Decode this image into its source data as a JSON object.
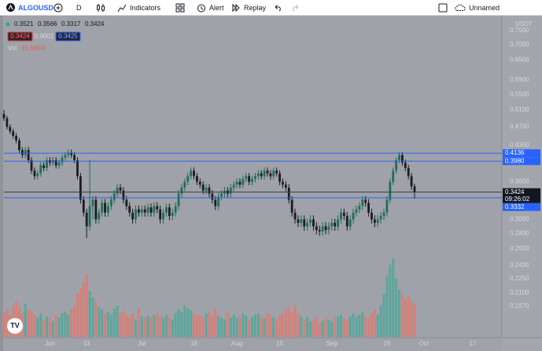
{
  "toolbar": {
    "symbol": "ALGOUSD",
    "interval": "D",
    "indicators": "Indicators",
    "alert": "Alert",
    "replay": "Replay",
    "layout_name": "Unnamed"
  },
  "chart_data": {
    "type": "candlestick",
    "currency": "USDT",
    "up_color": "#1f6e5a",
    "down_color": "#1c1c1e",
    "candles": [
      [
        0.5,
        0.51,
        0.484,
        0.49
      ],
      [
        0.49,
        0.496,
        0.464,
        0.47
      ],
      [
        0.47,
        0.476,
        0.454,
        0.46
      ],
      [
        0.46,
        0.466,
        0.444,
        0.45
      ],
      [
        0.45,
        0.456,
        0.434,
        0.44
      ],
      [
        0.44,
        0.446,
        0.414,
        0.42
      ],
      [
        0.42,
        0.426,
        0.404,
        0.41
      ],
      [
        0.41,
        0.426,
        0.404,
        0.42
      ],
      [
        0.42,
        0.426,
        0.394,
        0.4
      ],
      [
        0.4,
        0.406,
        0.374,
        0.38
      ],
      [
        0.38,
        0.386,
        0.364,
        0.37
      ],
      [
        0.37,
        0.381,
        0.364,
        0.375
      ],
      [
        0.375,
        0.396,
        0.369,
        0.39
      ],
      [
        0.39,
        0.396,
        0.379,
        0.385
      ],
      [
        0.385,
        0.406,
        0.379,
        0.4
      ],
      [
        0.4,
        0.406,
        0.389,
        0.395
      ],
      [
        0.395,
        0.406,
        0.389,
        0.4
      ],
      [
        0.4,
        0.406,
        0.384,
        0.39
      ],
      [
        0.39,
        0.401,
        0.384,
        0.395
      ],
      [
        0.395,
        0.411,
        0.389,
        0.405
      ],
      [
        0.405,
        0.416,
        0.399,
        0.41
      ],
      [
        0.41,
        0.421,
        0.404,
        0.415
      ],
      [
        0.415,
        0.421,
        0.404,
        0.41
      ],
      [
        0.41,
        0.416,
        0.394,
        0.4
      ],
      [
        0.4,
        0.406,
        0.364,
        0.37
      ],
      [
        0.37,
        0.376,
        0.324,
        0.33
      ],
      [
        0.33,
        0.336,
        0.304,
        0.31
      ],
      [
        0.31,
        0.316,
        0.274,
        0.29
      ],
      [
        0.29,
        0.4,
        0.284,
        0.32
      ],
      [
        0.32,
        0.336,
        0.3,
        0.33
      ],
      [
        0.33,
        0.336,
        0.294,
        0.3
      ],
      [
        0.3,
        0.316,
        0.294,
        0.31
      ],
      [
        0.31,
        0.331,
        0.304,
        0.325
      ],
      [
        0.325,
        0.331,
        0.304,
        0.31
      ],
      [
        0.31,
        0.326,
        0.304,
        0.32
      ],
      [
        0.32,
        0.336,
        0.314,
        0.33
      ],
      [
        0.33,
        0.346,
        0.324,
        0.34
      ],
      [
        0.34,
        0.356,
        0.334,
        0.35
      ],
      [
        0.35,
        0.356,
        0.339,
        0.345
      ],
      [
        0.345,
        0.351,
        0.324,
        0.33
      ],
      [
        0.33,
        0.336,
        0.314,
        0.32
      ],
      [
        0.32,
        0.326,
        0.304,
        0.31
      ],
      [
        0.31,
        0.316,
        0.294,
        0.3
      ],
      [
        0.3,
        0.321,
        0.294,
        0.315
      ],
      [
        0.315,
        0.321,
        0.304,
        0.31
      ],
      [
        0.31,
        0.321,
        0.304,
        0.315
      ],
      [
        0.315,
        0.321,
        0.304,
        0.31
      ],
      [
        0.31,
        0.324,
        0.304,
        0.318
      ],
      [
        0.318,
        0.324,
        0.304,
        0.31
      ],
      [
        0.31,
        0.326,
        0.304,
        0.32
      ],
      [
        0.32,
        0.326,
        0.309,
        0.315
      ],
      [
        0.315,
        0.321,
        0.294,
        0.3
      ],
      [
        0.3,
        0.316,
        0.294,
        0.31
      ],
      [
        0.31,
        0.324,
        0.304,
        0.318
      ],
      [
        0.318,
        0.324,
        0.299,
        0.305
      ],
      [
        0.305,
        0.316,
        0.299,
        0.31
      ],
      [
        0.31,
        0.326,
        0.304,
        0.32
      ],
      [
        0.32,
        0.346,
        0.314,
        0.34
      ],
      [
        0.34,
        0.356,
        0.334,
        0.35
      ],
      [
        0.35,
        0.366,
        0.344,
        0.36
      ],
      [
        0.36,
        0.376,
        0.354,
        0.37
      ],
      [
        0.37,
        0.386,
        0.364,
        0.38
      ],
      [
        0.38,
        0.386,
        0.364,
        0.37
      ],
      [
        0.37,
        0.376,
        0.354,
        0.36
      ],
      [
        0.36,
        0.366,
        0.349,
        0.355
      ],
      [
        0.355,
        0.361,
        0.339,
        0.345
      ],
      [
        0.345,
        0.356,
        0.339,
        0.35
      ],
      [
        0.35,
        0.356,
        0.334,
        0.34
      ],
      [
        0.34,
        0.346,
        0.324,
        0.33
      ],
      [
        0.33,
        0.336,
        0.314,
        0.32
      ],
      [
        0.32,
        0.341,
        0.314,
        0.335
      ],
      [
        0.335,
        0.346,
        0.329,
        0.34
      ],
      [
        0.34,
        0.351,
        0.334,
        0.345
      ],
      [
        0.345,
        0.351,
        0.334,
        0.34
      ],
      [
        0.34,
        0.356,
        0.334,
        0.35
      ],
      [
        0.35,
        0.361,
        0.344,
        0.355
      ],
      [
        0.355,
        0.366,
        0.349,
        0.36
      ],
      [
        0.36,
        0.366,
        0.349,
        0.355
      ],
      [
        0.355,
        0.371,
        0.349,
        0.365
      ],
      [
        0.365,
        0.376,
        0.359,
        0.37
      ],
      [
        0.37,
        0.376,
        0.354,
        0.36
      ],
      [
        0.36,
        0.371,
        0.354,
        0.365
      ],
      [
        0.365,
        0.376,
        0.359,
        0.37
      ],
      [
        0.37,
        0.381,
        0.364,
        0.375
      ],
      [
        0.375,
        0.381,
        0.364,
        0.37
      ],
      [
        0.37,
        0.386,
        0.364,
        0.38
      ],
      [
        0.38,
        0.386,
        0.369,
        0.375
      ],
      [
        0.375,
        0.381,
        0.364,
        0.37
      ],
      [
        0.37,
        0.386,
        0.364,
        0.38
      ],
      [
        0.38,
        0.386,
        0.369,
        0.375
      ],
      [
        0.375,
        0.381,
        0.354,
        0.36
      ],
      [
        0.36,
        0.366,
        0.349,
        0.355
      ],
      [
        0.355,
        0.361,
        0.344,
        0.35
      ],
      [
        0.35,
        0.356,
        0.324,
        0.33
      ],
      [
        0.33,
        0.336,
        0.304,
        0.31
      ],
      [
        0.31,
        0.316,
        0.294,
        0.3
      ],
      [
        0.3,
        0.306,
        0.289,
        0.295
      ],
      [
        0.295,
        0.306,
        0.289,
        0.3
      ],
      [
        0.3,
        0.306,
        0.284,
        0.29
      ],
      [
        0.29,
        0.301,
        0.284,
        0.295
      ],
      [
        0.295,
        0.306,
        0.289,
        0.3
      ],
      [
        0.3,
        0.306,
        0.284,
        0.29
      ],
      [
        0.29,
        0.296,
        0.279,
        0.285
      ],
      [
        0.285,
        0.291,
        0.277,
        0.283
      ],
      [
        0.283,
        0.296,
        0.277,
        0.29
      ],
      [
        0.29,
        0.296,
        0.279,
        0.285
      ],
      [
        0.285,
        0.296,
        0.279,
        0.29
      ],
      [
        0.29,
        0.301,
        0.284,
        0.295
      ],
      [
        0.295,
        0.301,
        0.284,
        0.29
      ],
      [
        0.29,
        0.306,
        0.284,
        0.3
      ],
      [
        0.3,
        0.316,
        0.294,
        0.31
      ],
      [
        0.31,
        0.316,
        0.299,
        0.305
      ],
      [
        0.305,
        0.311,
        0.284,
        0.29
      ],
      [
        0.29,
        0.306,
        0.284,
        0.3
      ],
      [
        0.3,
        0.316,
        0.294,
        0.31
      ],
      [
        0.31,
        0.321,
        0.304,
        0.315
      ],
      [
        0.315,
        0.326,
        0.309,
        0.32
      ],
      [
        0.32,
        0.336,
        0.314,
        0.33
      ],
      [
        0.33,
        0.336,
        0.319,
        0.325
      ],
      [
        0.325,
        0.331,
        0.304,
        0.31
      ],
      [
        0.31,
        0.316,
        0.294,
        0.3
      ],
      [
        0.3,
        0.306,
        0.289,
        0.295
      ],
      [
        0.295,
        0.306,
        0.289,
        0.3
      ],
      [
        0.3,
        0.311,
        0.294,
        0.305
      ],
      [
        0.305,
        0.316,
        0.299,
        0.31
      ],
      [
        0.31,
        0.336,
        0.304,
        0.33
      ],
      [
        0.33,
        0.366,
        0.324,
        0.36
      ],
      [
        0.36,
        0.386,
        0.354,
        0.38
      ],
      [
        0.38,
        0.406,
        0.374,
        0.4
      ],
      [
        0.4,
        0.416,
        0.394,
        0.41
      ],
      [
        0.41,
        0.416,
        0.389,
        0.395
      ],
      [
        0.395,
        0.401,
        0.379,
        0.385
      ],
      [
        0.385,
        0.391,
        0.364,
        0.37
      ],
      [
        0.37,
        0.376,
        0.346,
        0.3521
      ],
      [
        0.3521,
        0.3566,
        0.3317,
        0.3424
      ]
    ],
    "volume": {
      "name": "Vol",
      "value_label": "41.665M",
      "ylim": [
        0,
        110
      ],
      "up_color": "#5aa79d",
      "down_color": "#d77f78",
      "values": [
        30,
        35,
        28,
        40,
        45,
        38,
        30,
        42,
        36,
        33,
        28,
        25,
        30,
        22,
        26,
        24,
        20,
        27,
        25,
        30,
        32,
        28,
        35,
        40,
        55,
        62,
        70,
        80,
        58,
        50,
        45,
        38,
        35,
        30,
        32,
        28,
        36,
        40,
        30,
        33,
        28,
        25,
        30,
        22,
        35,
        26,
        24,
        27,
        25,
        28,
        30,
        26,
        24,
        28,
        25,
        22,
        30,
        35,
        32,
        40,
        36,
        34,
        30,
        26,
        28,
        25,
        30,
        32,
        28,
        35,
        26,
        24,
        22,
        30,
        25,
        28,
        24,
        26,
        30,
        27,
        22,
        25,
        28,
        30,
        26,
        24,
        30,
        28,
        25,
        22,
        28,
        30,
        35,
        38,
        32,
        40,
        30,
        26,
        22,
        25,
        20,
        22,
        26,
        18,
        20,
        24,
        22,
        20,
        25,
        26,
        28,
        24,
        22,
        26,
        30,
        25,
        28,
        32,
        26,
        24,
        30,
        35,
        28,
        40,
        55,
        78,
        92,
        100,
        75,
        60,
        55,
        48,
        52,
        45,
        41.665
      ]
    },
    "bid": 0.3424,
    "spread": 0.0001,
    "ask": 0.3425,
    "price_lines": [
      0.4136,
      {
        "value": 0.398,
        "label": "0.3980"
      },
      0.3332
    ],
    "price_line_color": "#2962ff",
    "countdown": "09:26:02",
    "log_scale": true,
    "grid": false,
    "ylim": [
      0.169,
      0.806
    ],
    "yticks": [
      {
        "value": 0.75,
        "label": "0.7500"
      },
      {
        "value": 0.7,
        "label": "0.7000"
      },
      {
        "value": 0.65,
        "label": "0.6500"
      },
      {
        "value": 0.59,
        "label": "0.5900"
      },
      {
        "value": 0.55,
        "label": "0.5500"
      },
      {
        "value": 0.51,
        "label": "0.5100"
      },
      {
        "value": 0.47,
        "label": "0.4700"
      },
      {
        "value": 0.43,
        "label": "0.4300"
      },
      {
        "value": 0.36,
        "label": "0.3600"
      },
      {
        "value": 0.3,
        "label": "0.3000"
      },
      {
        "value": 0.28,
        "label": "0.2800"
      },
      {
        "value": 0.26,
        "label": "0.2600"
      },
      {
        "value": 0.24,
        "label": "0.2400"
      },
      {
        "value": 0.225,
        "label": "0.2250"
      },
      {
        "value": 0.21,
        "label": "0.2100"
      },
      {
        "value": 0.197,
        "label": "0.1970"
      }
    ],
    "xlim": [
      0,
      162.5
    ],
    "xticks": [
      {
        "value": 15,
        "label": "Jun"
      },
      {
        "value": 27,
        "label": "13"
      },
      {
        "value": 45,
        "label": "Jul"
      },
      {
        "value": 62,
        "label": "18"
      },
      {
        "value": 76,
        "label": "Aug"
      },
      {
        "value": 90,
        "label": "15"
      },
      {
        "value": 107,
        "label": "Sep"
      },
      {
        "value": 125,
        "label": "19"
      },
      {
        "value": 137,
        "label": "Oct"
      },
      {
        "value": 153,
        "label": "17"
      }
    ]
  }
}
